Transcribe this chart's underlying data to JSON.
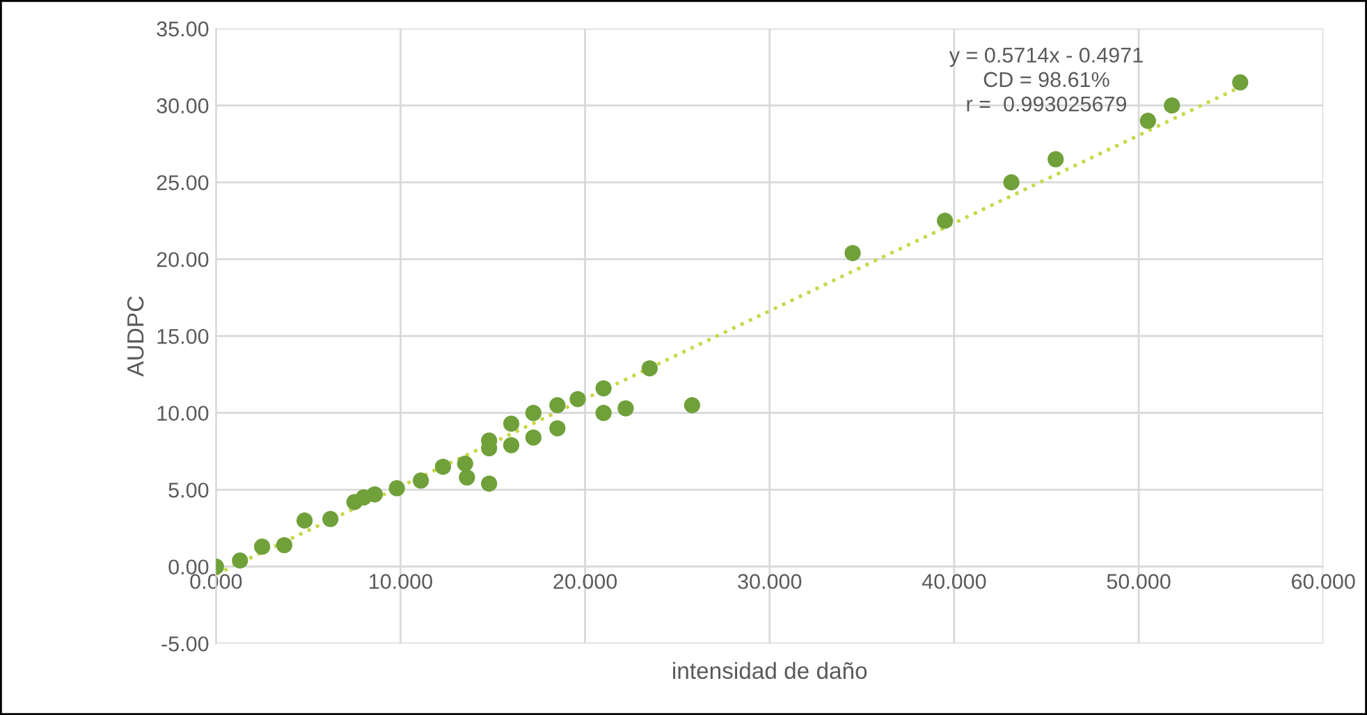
{
  "chart_data": {
    "type": "scatter",
    "xlabel": "intensidad de daño",
    "ylabel": "AUDPC",
    "annotations": [
      "y = 0.5714x - 0.4971\nCD = 98.61%\nr =  0.993025679"
    ],
    "series": [
      {
        "color": "#70a03a",
        "marker": "circle",
        "x": [
          0,
          1.3,
          2.5,
          3.7,
          4.8,
          6.2,
          7.5,
          8.0,
          8.6,
          9.8,
          11.1,
          12.3,
          13.5,
          13.6,
          14.8,
          14.8,
          14.8,
          16.0,
          16.0,
          17.2,
          17.2,
          18.5,
          18.5,
          19.6,
          21.0,
          21.0,
          22.2,
          23.5,
          25.8,
          34.5,
          39.5,
          43.1,
          45.5,
          50.5,
          51.8,
          55.5
        ],
        "values": [
          0,
          0.4,
          1.3,
          1.4,
          3.0,
          3.1,
          4.2,
          4.5,
          4.7,
          5.1,
          5.6,
          6.5,
          6.7,
          5.8,
          5.4,
          7.7,
          8.2,
          9.3,
          7.9,
          10.0,
          8.4,
          10.5,
          9.0,
          10.9,
          11.6,
          10.0,
          10.3,
          12.9,
          10.5,
          20.4,
          22.5,
          25.0,
          26.5,
          29.0,
          30.0,
          31.5
        ]
      },
      {
        "type": "line",
        "color": "#c8d84a",
        "line_style": "dotted",
        "marker": "none",
        "x": [
          0,
          55.5
        ],
        "values": [
          -0.5,
          31.2
        ]
      }
    ],
    "grid": true,
    "xlim": [
      0,
      60
    ],
    "xticks": [
      {
        "value": 0,
        "label": "0.000"
      },
      {
        "value": 10,
        "label": "10.000"
      },
      {
        "value": 20,
        "label": "20.000"
      },
      {
        "value": 30,
        "label": "30.000"
      },
      {
        "value": 40,
        "label": "40.000"
      },
      {
        "value": 50,
        "label": "50.000"
      },
      {
        "value": 60,
        "label": "60.000"
      }
    ],
    "ylim": [
      -5,
      35
    ],
    "yticks": [
      {
        "value": -5,
        "label": "-5.00"
      },
      {
        "value": 0,
        "label": "0.00"
      },
      {
        "value": 5,
        "label": "5.00"
      },
      {
        "value": 10,
        "label": "10.00"
      },
      {
        "value": 15,
        "label": "15.00"
      },
      {
        "value": 20,
        "label": "20.00"
      },
      {
        "value": 25,
        "label": "25.00"
      },
      {
        "value": 30,
        "label": "30.00"
      },
      {
        "value": 35,
        "label": "35.00"
      }
    ]
  }
}
